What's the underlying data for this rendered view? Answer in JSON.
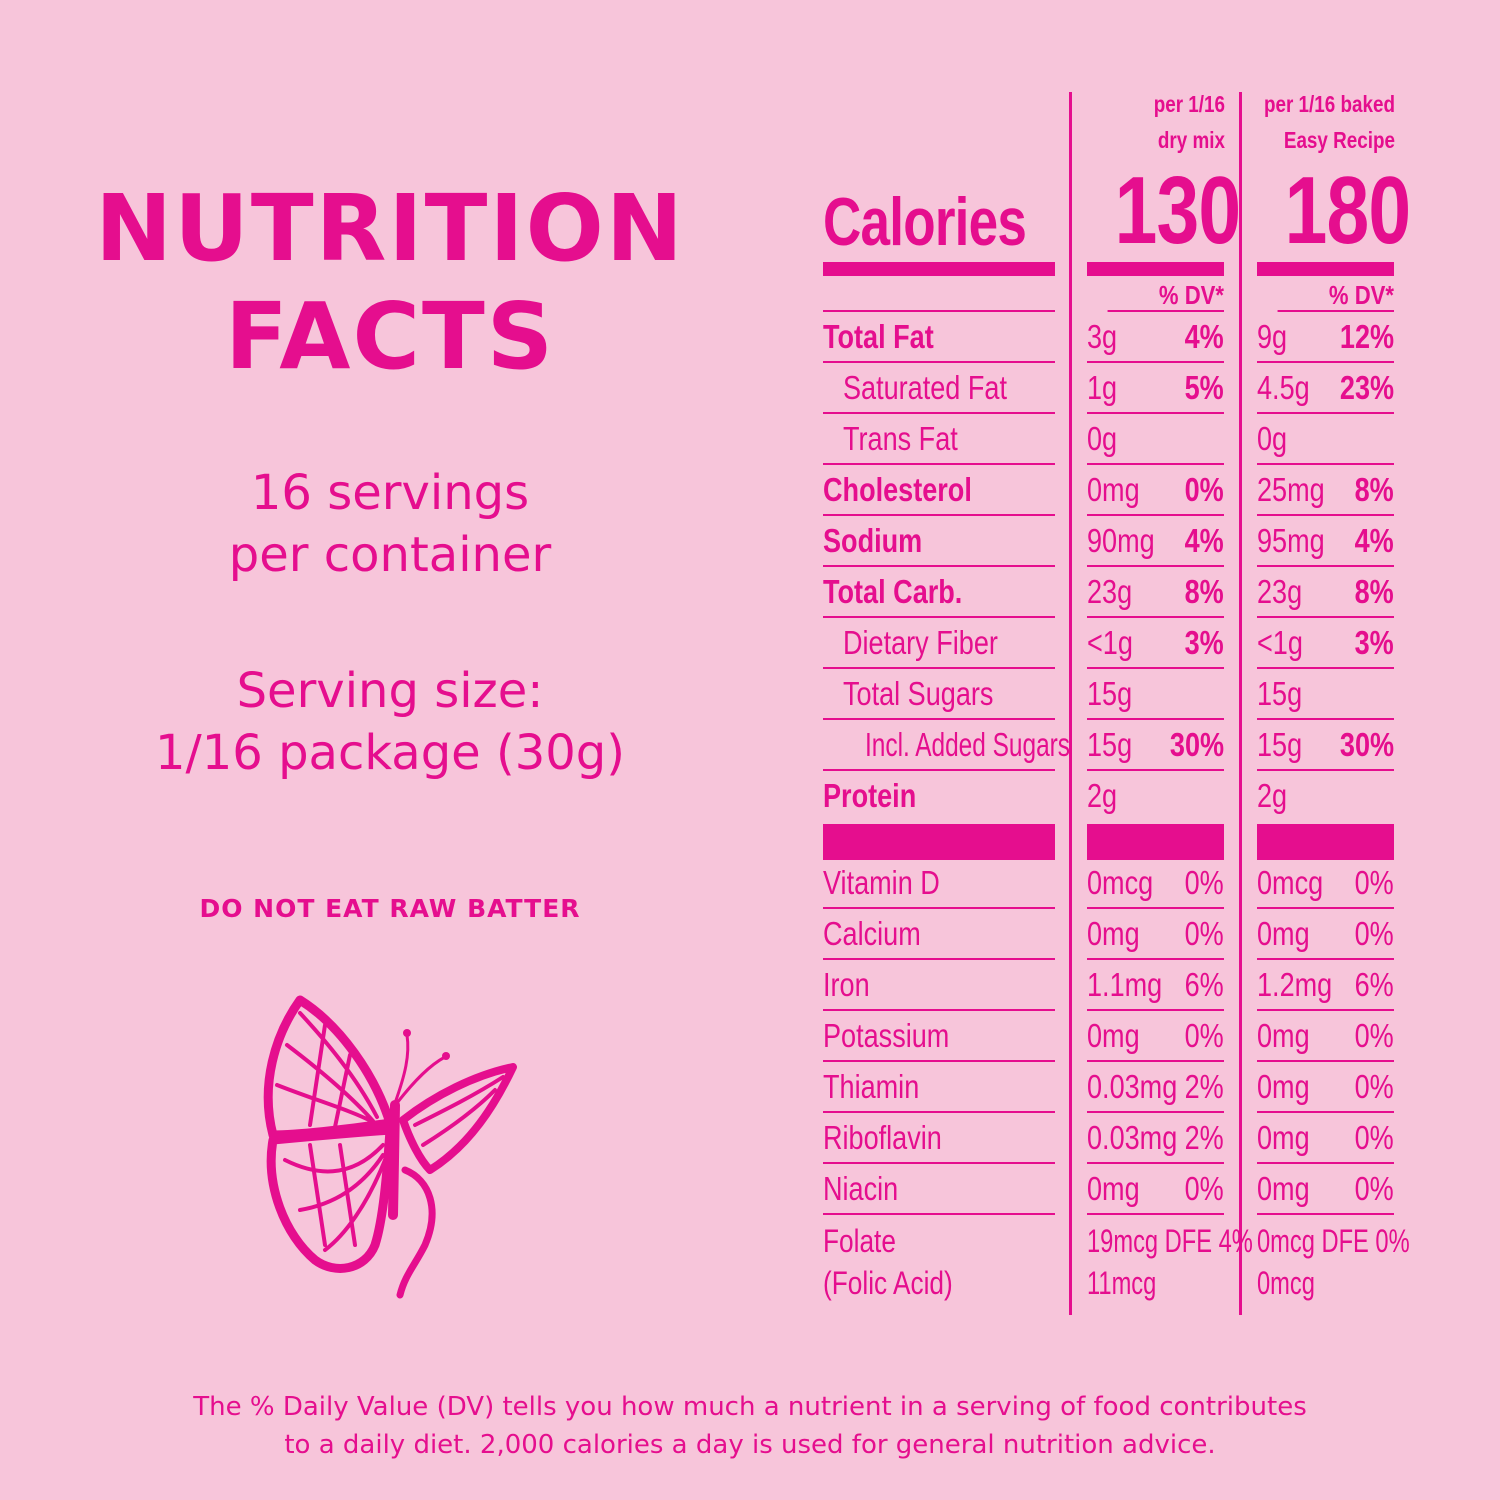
{
  "left": {
    "title_line1": "NUTRITION",
    "title_line2": "FACTS",
    "servings_line1": "16 servings",
    "servings_line2": "per container",
    "size_line1": "Serving size:",
    "size_line2": "1/16 package (30g)",
    "warning": "DO NOT EAT RAW BATTER"
  },
  "columns": {
    "col1_line1": "per 1/16",
    "col1_line2": "dry mix",
    "col2_line1": "per 1/16 baked",
    "col2_line2": "Easy Recipe"
  },
  "calories": {
    "label": "Calories",
    "col1": "130",
    "col2": "180"
  },
  "dv_header": "% DV*",
  "nutrients": [
    {
      "name": "Total Fat",
      "c1_amt": "3g",
      "c1_pct": "4%",
      "c2_amt": "9g",
      "c2_pct": "12%"
    },
    {
      "name": "Saturated Fat",
      "c1_amt": "1g",
      "c1_pct": "5%",
      "c2_amt": "4.5g",
      "c2_pct": "23%"
    },
    {
      "name": "Trans Fat",
      "c1_amt": "0g",
      "c1_pct": "",
      "c2_amt": "0g",
      "c2_pct": ""
    },
    {
      "name": "Cholesterol",
      "c1_amt": "0mg",
      "c1_pct": "0%",
      "c2_amt": "25mg",
      "c2_pct": "8%"
    },
    {
      "name": "Sodium",
      "c1_amt": "90mg",
      "c1_pct": "4%",
      "c2_amt": "95mg",
      "c2_pct": "4%"
    },
    {
      "name": "Total Carb.",
      "c1_amt": "23g",
      "c1_pct": "8%",
      "c2_amt": "23g",
      "c2_pct": "8%"
    },
    {
      "name": "Dietary Fiber",
      "c1_amt": "<1g",
      "c1_pct": "3%",
      "c2_amt": "<1g",
      "c2_pct": "3%"
    },
    {
      "name": "Total Sugars",
      "c1_amt": "15g",
      "c1_pct": "",
      "c2_amt": "15g",
      "c2_pct": ""
    },
    {
      "name": "Incl. Added Sugars",
      "c1_amt": "15g",
      "c1_pct": "30%",
      "c2_amt": "15g",
      "c2_pct": "30%"
    },
    {
      "name": "Protein",
      "c1_amt": "2g",
      "c1_pct": "",
      "c2_amt": "2g",
      "c2_pct": ""
    }
  ],
  "vitamins": [
    {
      "name": "Vitamin D",
      "c1_amt": "0mcg",
      "c1_pct": "0%",
      "c2_amt": "0mcg",
      "c2_pct": "0%"
    },
    {
      "name": "Calcium",
      "c1_amt": "0mg",
      "c1_pct": "0%",
      "c2_amt": "0mg",
      "c2_pct": "0%"
    },
    {
      "name": "Iron",
      "c1_amt": "1.1mg",
      "c1_pct": "6%",
      "c2_amt": "1.2mg",
      "c2_pct": "6%"
    },
    {
      "name": "Potassium",
      "c1_amt": "0mg",
      "c1_pct": "0%",
      "c2_amt": "0mg",
      "c2_pct": "0%"
    },
    {
      "name": "Thiamin",
      "c1_amt": "0.03mg",
      "c1_pct": "2%",
      "c2_amt": "0mg",
      "c2_pct": "0%"
    },
    {
      "name": "Riboflavin",
      "c1_amt": "0.03mg",
      "c1_pct": "2%",
      "c2_amt": "0mg",
      "c2_pct": "0%"
    },
    {
      "name": "Niacin",
      "c1_amt": "0mg",
      "c1_pct": "0%",
      "c2_amt": "0mg",
      "c2_pct": "0%"
    }
  ],
  "folate": {
    "name_line1": "Folate",
    "name_line2": "(Folic Acid)",
    "c1_line1": "19mcg DFE 4%",
    "c1_line2": "11mcg",
    "c2_line1": "0mcg DFE 0%",
    "c2_line2": "0mcg"
  },
  "footnote": {
    "line1": "The % Daily Value (DV) tells you how much a nutrient in a serving of food contributes",
    "line2": "to a daily diet. 2,000 calories a day is used for general nutrition advice."
  },
  "colors": {
    "background": "#f7c5da",
    "accent": "#e50e8e"
  },
  "icons": [
    "butterfly-icon"
  ]
}
